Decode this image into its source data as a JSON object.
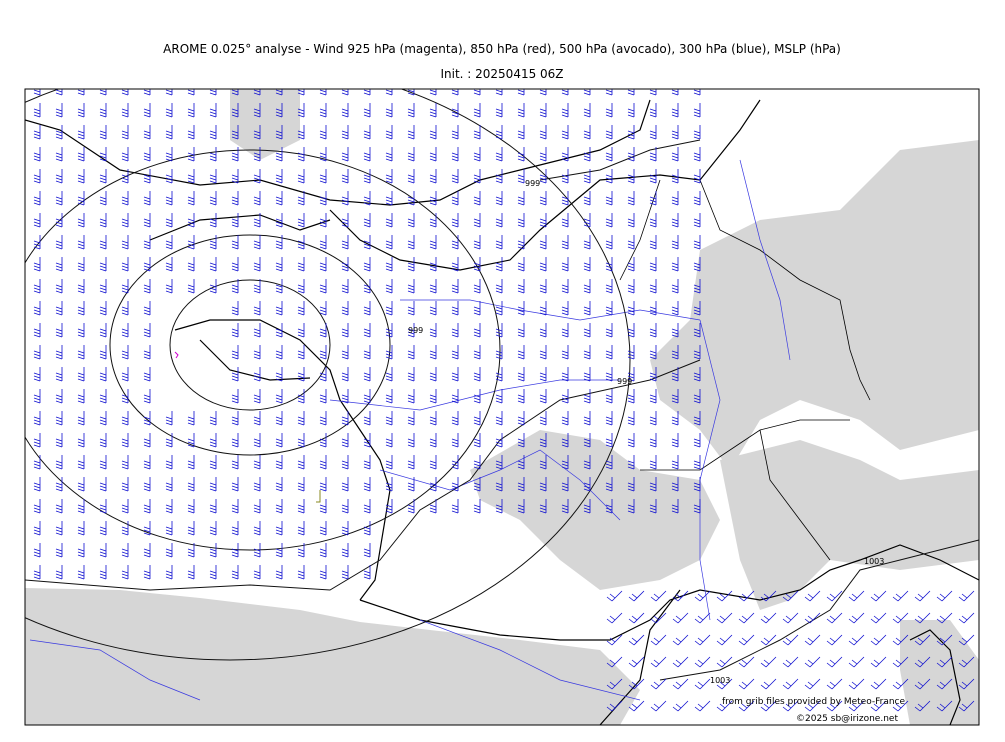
{
  "header": {
    "title": "AROME 0.025° analyse - Wind 925 hPa (magenta), 850 hPa (red), 500 hPa (avocado), 300 hPa (blue), MSLP (hPa)",
    "subtitle": "Init. : 20250415 06Z"
  },
  "isobar_labels": [
    "999",
    "999",
    "999",
    "1003",
    "1003"
  ],
  "credits": [
    "from grib files provided by Meteo-France",
    "©2025 sb@irizone.net"
  ]
}
